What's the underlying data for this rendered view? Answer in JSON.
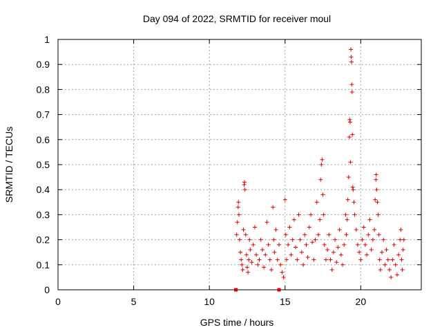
{
  "chart_data": {
    "type": "scatter",
    "title": "Day 094 of 2022, SRMTID for receiver moul",
    "xlabel": "GPS time / hours",
    "ylabel": "SRMTID / TECUs",
    "xlim": [
      0,
      24
    ],
    "ylim": [
      0,
      1
    ],
    "xticks": [
      0,
      5,
      10,
      15,
      20
    ],
    "yticks": [
      0,
      0.1,
      0.2,
      0.3,
      0.4,
      0.5,
      0.6,
      0.7,
      0.8,
      0.9,
      1
    ],
    "ytick_labels": [
      "0",
      "0.1",
      "0.2",
      "0.3",
      "0.4",
      "0.5",
      "0.6",
      "0.7",
      "0.8",
      "0.9",
      "1"
    ],
    "grid": true,
    "marker": "+",
    "color": "#e00000",
    "series": [
      {
        "values": [
          [
            11.75,
            0.0
          ],
          [
            14.6,
            0.0
          ],
          [
            11.8,
            0.22
          ],
          [
            11.85,
            0.27
          ],
          [
            11.9,
            0.33
          ],
          [
            11.92,
            0.35
          ],
          [
            11.95,
            0.3
          ],
          [
            12.0,
            0.2
          ],
          [
            12.05,
            0.15
          ],
          [
            12.1,
            0.12
          ],
          [
            12.15,
            0.1
          ],
          [
            12.2,
            0.08
          ],
          [
            12.25,
            0.24
          ],
          [
            12.3,
            0.42
          ],
          [
            12.32,
            0.43
          ],
          [
            12.35,
            0.4
          ],
          [
            12.4,
            0.22
          ],
          [
            12.45,
            0.14
          ],
          [
            12.5,
            0.09
          ],
          [
            12.55,
            0.07
          ],
          [
            12.6,
            0.12
          ],
          [
            12.65,
            0.2
          ],
          [
            12.7,
            0.16
          ],
          [
            12.8,
            0.11
          ],
          [
            12.9,
            0.18
          ],
          [
            13.0,
            0.25
          ],
          [
            13.1,
            0.14
          ],
          [
            13.2,
            0.1
          ],
          [
            13.3,
            0.12
          ],
          [
            13.4,
            0.2
          ],
          [
            13.5,
            0.16
          ],
          [
            13.6,
            0.09
          ],
          [
            13.7,
            0.14
          ],
          [
            13.8,
            0.27
          ],
          [
            13.9,
            0.18
          ],
          [
            14.0,
            0.12
          ],
          [
            14.1,
            0.08
          ],
          [
            14.2,
            0.33
          ],
          [
            14.25,
            0.2
          ],
          [
            14.3,
            0.15
          ],
          [
            14.4,
            0.24
          ],
          [
            14.5,
            0.12
          ],
          [
            14.6,
            0.18
          ],
          [
            14.7,
            0.1
          ],
          [
            14.8,
            0.07
          ],
          [
            14.9,
            0.05
          ],
          [
            15.0,
            0.36
          ],
          [
            15.05,
            0.22
          ],
          [
            15.1,
            0.12
          ],
          [
            15.2,
            0.18
          ],
          [
            15.3,
            0.25
          ],
          [
            15.4,
            0.14
          ],
          [
            15.5,
            0.2
          ],
          [
            15.6,
            0.28
          ],
          [
            15.7,
            0.17
          ],
          [
            15.8,
            0.12
          ],
          [
            15.9,
            0.3
          ],
          [
            16.0,
            0.2
          ],
          [
            16.1,
            0.15
          ],
          [
            16.2,
            0.1
          ],
          [
            16.3,
            0.22
          ],
          [
            16.4,
            0.18
          ],
          [
            16.5,
            0.13
          ],
          [
            16.6,
            0.25
          ],
          [
            16.7,
            0.3
          ],
          [
            16.8,
            0.19
          ],
          [
            16.9,
            0.12
          ],
          [
            17.0,
            0.2
          ],
          [
            17.1,
            0.35
          ],
          [
            17.2,
            0.22
          ],
          [
            17.3,
            0.28
          ],
          [
            17.35,
            0.44
          ],
          [
            17.4,
            0.5
          ],
          [
            17.45,
            0.52
          ],
          [
            17.5,
            0.38
          ],
          [
            17.55,
            0.3
          ],
          [
            17.6,
            0.18
          ],
          [
            17.7,
            0.12
          ],
          [
            17.8,
            0.16
          ],
          [
            17.9,
            0.22
          ],
          [
            18.0,
            0.12
          ],
          [
            18.1,
            0.08
          ],
          [
            18.2,
            0.15
          ],
          [
            18.3,
            0.2
          ],
          [
            18.4,
            0.11
          ],
          [
            18.5,
            0.17
          ],
          [
            18.6,
            0.24
          ],
          [
            18.7,
            0.14
          ],
          [
            18.8,
            0.1
          ],
          [
            18.9,
            0.18
          ],
          [
            19.0,
            0.3
          ],
          [
            19.05,
            0.22
          ],
          [
            19.1,
            0.28
          ],
          [
            19.15,
            0.36
          ],
          [
            19.2,
            0.45
          ],
          [
            19.25,
            0.61
          ],
          [
            19.27,
            0.68
          ],
          [
            19.3,
            0.67
          ],
          [
            19.32,
            0.51
          ],
          [
            19.35,
            0.96
          ],
          [
            19.37,
            0.93
          ],
          [
            19.39,
            0.91
          ],
          [
            19.41,
            0.82
          ],
          [
            19.43,
            0.79
          ],
          [
            19.45,
            0.62
          ],
          [
            19.47,
            0.41
          ],
          [
            19.5,
            0.4
          ],
          [
            19.55,
            0.35
          ],
          [
            19.6,
            0.3
          ],
          [
            19.7,
            0.24
          ],
          [
            19.8,
            0.18
          ],
          [
            19.9,
            0.15
          ],
          [
            20.0,
            0.12
          ],
          [
            20.1,
            0.2
          ],
          [
            20.2,
            0.25
          ],
          [
            20.3,
            0.18
          ],
          [
            20.4,
            0.14
          ],
          [
            20.5,
            0.22
          ],
          [
            20.6,
            0.28
          ],
          [
            20.7,
            0.16
          ],
          [
            20.8,
            0.2
          ],
          [
            20.9,
            0.24
          ],
          [
            20.95,
            0.36
          ],
          [
            21.0,
            0.44
          ],
          [
            21.02,
            0.46
          ],
          [
            21.05,
            0.4
          ],
          [
            21.1,
            0.35
          ],
          [
            21.15,
            0.3
          ],
          [
            21.2,
            0.22
          ],
          [
            21.25,
            0.12
          ],
          [
            21.3,
            0.08
          ],
          [
            21.4,
            0.15
          ],
          [
            21.5,
            0.2
          ],
          [
            21.6,
            0.1
          ],
          [
            21.7,
            0.16
          ],
          [
            21.8,
            0.12
          ],
          [
            21.9,
            0.08
          ],
          [
            22.0,
            0.05
          ],
          [
            22.1,
            0.12
          ],
          [
            22.2,
            0.18
          ],
          [
            22.3,
            0.1
          ],
          [
            22.4,
            0.06
          ],
          [
            22.5,
            0.14
          ],
          [
            22.6,
            0.2
          ],
          [
            22.65,
            0.24
          ],
          [
            22.7,
            0.12
          ],
          [
            22.75,
            0.08
          ],
          [
            22.8,
            0.16
          ],
          [
            22.85,
            0.2
          ]
        ]
      }
    ]
  }
}
